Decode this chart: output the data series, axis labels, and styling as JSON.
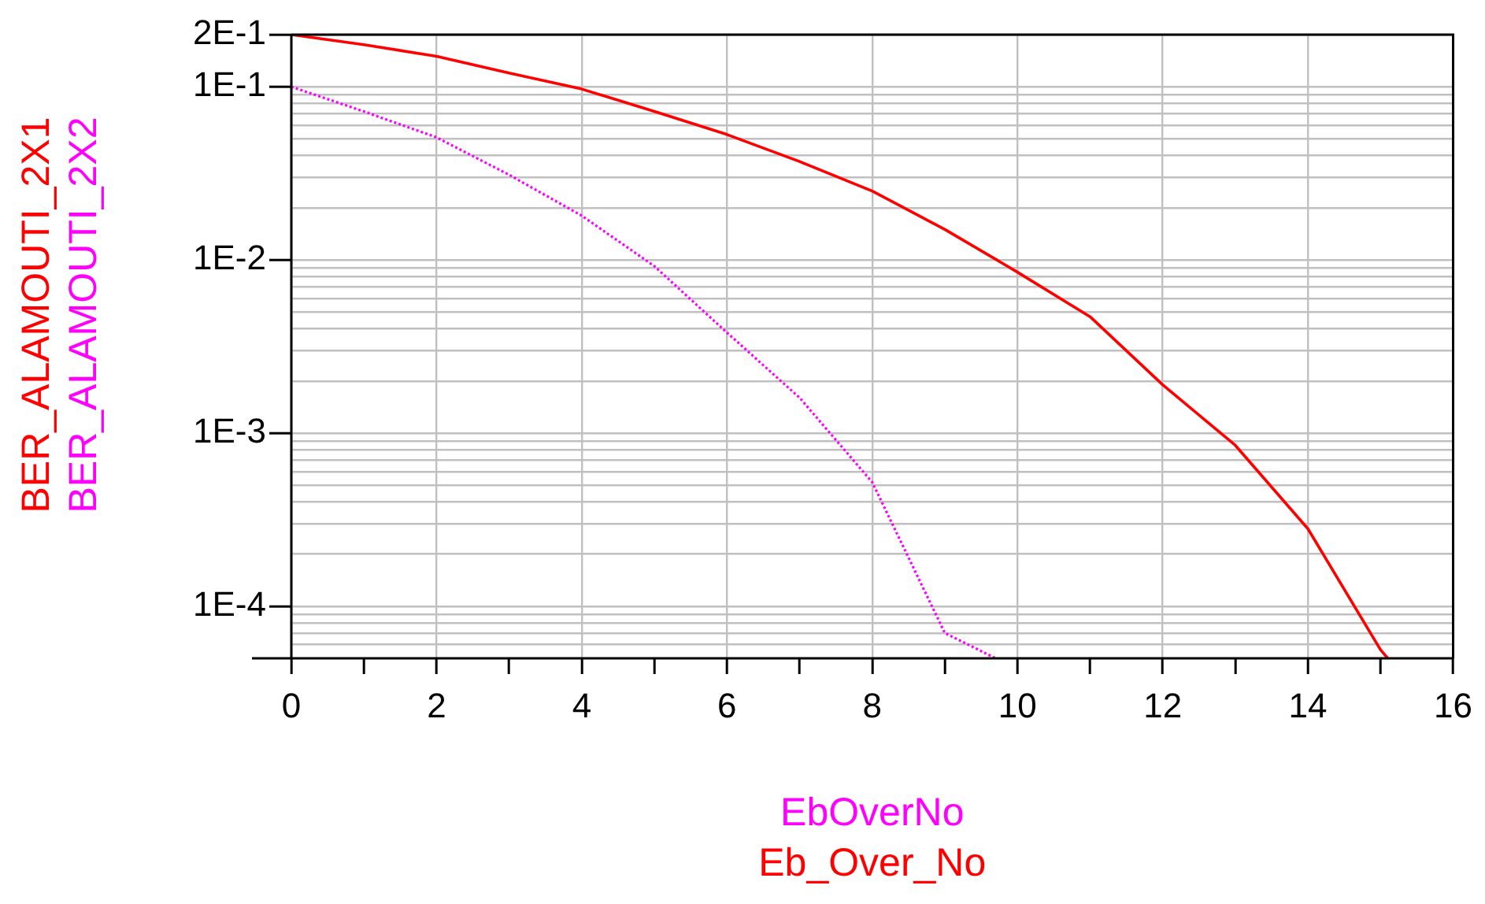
{
  "chart_data": {
    "type": "line",
    "xlabel": "Eb_Over_No",
    "annotations": [
      "EbOverNo"
    ],
    "log": "y",
    "grid": true,
    "legend": false,
    "marker": "none",
    "xlim": [
      0,
      16
    ],
    "ylim": [
      5e-05,
      0.2
    ],
    "xticks": [
      0,
      {
        "value": 1,
        "label": null
      },
      2,
      {
        "value": 3,
        "label": null
      },
      4,
      {
        "value": 5,
        "label": null
      },
      6,
      {
        "value": 7,
        "label": null
      },
      8,
      {
        "value": 9,
        "label": null
      },
      10,
      {
        "value": 11,
        "label": null
      },
      12,
      {
        "value": 13,
        "label": null
      },
      14,
      {
        "value": 15,
        "label": null
      },
      16
    ],
    "yticks": [
      {
        "value": 0.2,
        "label": "2E-1"
      },
      {
        "value": 0.1,
        "label": "1E-1"
      },
      {
        "value": 0.09,
        "label": null
      },
      {
        "value": 0.08,
        "label": null
      },
      {
        "value": 0.07,
        "label": null
      },
      {
        "value": 0.06,
        "label": null
      },
      {
        "value": 0.05,
        "label": null
      },
      {
        "value": 0.04,
        "label": null
      },
      {
        "value": 0.03,
        "label": null
      },
      {
        "value": 0.02,
        "label": null
      },
      {
        "value": 0.01,
        "label": "1E-2"
      },
      {
        "value": 0.009,
        "label": null
      },
      {
        "value": 0.008,
        "label": null
      },
      {
        "value": 0.007,
        "label": null
      },
      {
        "value": 0.006,
        "label": null
      },
      {
        "value": 0.005,
        "label": null
      },
      {
        "value": 0.004,
        "label": null
      },
      {
        "value": 0.003,
        "label": null
      },
      {
        "value": 0.002,
        "label": null
      },
      {
        "value": 0.001,
        "label": "1E-3"
      },
      {
        "value": 0.0009,
        "label": null
      },
      {
        "value": 0.0008,
        "label": null
      },
      {
        "value": 0.0007,
        "label": null
      },
      {
        "value": 0.0006,
        "label": null
      },
      {
        "value": 0.0005,
        "label": null
      },
      {
        "value": 0.0004,
        "label": null
      },
      {
        "value": 0.0003,
        "label": null
      },
      {
        "value": 0.0002,
        "label": null
      },
      {
        "value": 0.0001,
        "label": "1E-4"
      },
      {
        "value": 9e-05,
        "label": null
      },
      {
        "value": 8e-05,
        "label": null
      },
      {
        "value": 7e-05,
        "label": null
      },
      {
        "value": 6e-05,
        "label": null
      }
    ],
    "series": [
      {
        "name": "BER_ALAMOUTI_2X1",
        "color": "#ff0000",
        "line_style": "solid",
        "x": [
          0,
          1,
          2,
          3,
          4,
          5,
          6,
          7,
          8,
          9,
          10,
          11,
          12,
          13,
          14,
          15,
          15.1
        ],
        "values": [
          0.2,
          0.175,
          0.15,
          0.12,
          0.097,
          0.072,
          0.053,
          0.037,
          0.025,
          0.015,
          0.0085,
          0.0047,
          0.0019,
          0.00085,
          0.00028,
          5.6e-05,
          5e-05
        ]
      },
      {
        "name": "BER_ALAMOUTI_2X2",
        "color": "#ff00ff",
        "line_style": "dotted",
        "x": [
          0,
          1,
          2,
          3,
          4,
          5,
          6,
          7,
          8,
          9,
          9.7
        ],
        "values": [
          0.1,
          0.072,
          0.051,
          0.031,
          0.018,
          0.0092,
          0.0038,
          0.0016,
          0.00052,
          7e-05,
          5e-05
        ]
      }
    ]
  }
}
